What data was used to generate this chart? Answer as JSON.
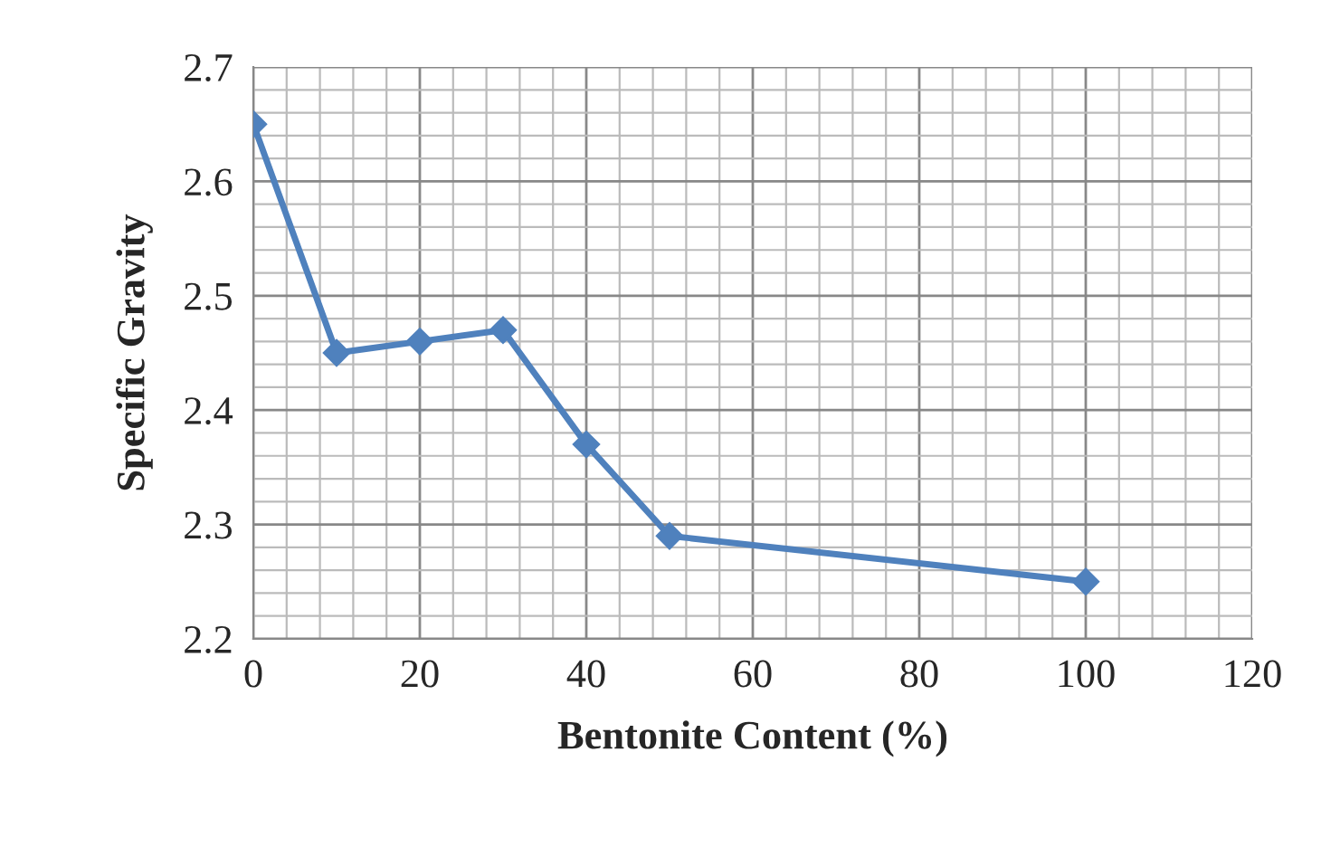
{
  "chart_data": {
    "type": "line",
    "xlabel": "Bentonite Content (%)",
    "ylabel": "Specific Gravity",
    "x": [
      0,
      10,
      20,
      30,
      40,
      50,
      100
    ],
    "series": [
      {
        "color": "#4f81bd",
        "values": [
          2.65,
          2.45,
          2.46,
          2.47,
          2.37,
          2.29,
          2.25
        ]
      }
    ],
    "xlim": [
      0,
      120
    ],
    "xticks": [
      0,
      20,
      40,
      60,
      80,
      100,
      120
    ],
    "ylim": [
      2.2,
      2.7
    ],
    "yticks": [
      2.2,
      2.3,
      2.4,
      2.5,
      2.6,
      2.7
    ],
    "grid": true,
    "marker": "diamond",
    "line_style": "solid"
  }
}
